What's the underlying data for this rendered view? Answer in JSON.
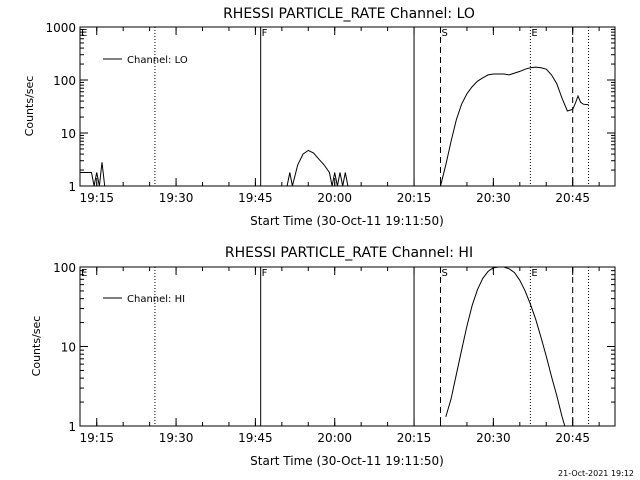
{
  "footer_date": "21-Oct-2021 19:12",
  "chart_data": [
    {
      "type": "line",
      "title": "RHESSI PARTICLE_RATE Channel: LO",
      "xlabel": "Start Time (30-Oct-11 19:11:50)",
      "ylabel": "Counts/sec",
      "x_start": "19:11:50",
      "x_ticks": [
        "19:15",
        "19:30",
        "19:45",
        "20:00",
        "20:15",
        "20:30",
        "20:45"
      ],
      "y_scale": "log",
      "ylim": [
        1,
        1000
      ],
      "y_ticks": [
        "1",
        "10",
        "100",
        "1000"
      ],
      "legend": {
        "label": "Channel: LO",
        "position": "top-left"
      },
      "markers": [
        {
          "label": "E",
          "time": "19:11:50",
          "style": "solid"
        },
        {
          "label": "",
          "time": "19:26",
          "style": "dotted"
        },
        {
          "label": "F",
          "time": "19:46",
          "style": "solid"
        },
        {
          "label": "",
          "time": "20:15",
          "style": "solid"
        },
        {
          "label": "S",
          "time": "20:20",
          "style": "dashed"
        },
        {
          "label": "E",
          "time": "20:37",
          "style": "dotted"
        },
        {
          "label": "",
          "time": "20:45",
          "style": "dashed"
        },
        {
          "label": "",
          "time": "20:48",
          "style": "dotted"
        }
      ],
      "series": [
        {
          "segments": [
            [
              [
                "19:11:50",
                1.8
              ],
              [
                "19:14",
                1.8
              ],
              [
                "19:14.5",
                1.0
              ],
              [
                "19:15",
                1.8
              ],
              [
                "19:15.5",
                1.0
              ],
              [
                "19:16",
                2.8
              ],
              [
                "19:16.5",
                1.0
              ]
            ],
            [
              [
                "19:51",
                1.0
              ],
              [
                "19:51.5",
                1.8
              ],
              [
                "19:52",
                1.0
              ],
              [
                "19:53",
                2.5
              ],
              [
                "19:54",
                4.0
              ],
              [
                "19:55",
                4.7
              ],
              [
                "19:56",
                4.2
              ],
              [
                "19:57",
                3.2
              ],
              [
                "19:58",
                2.5
              ],
              [
                "19:59",
                1.8
              ],
              [
                "19:59.5",
                1.0
              ],
              [
                "20:00",
                1.8
              ],
              [
                "20:00.5",
                1.0
              ],
              [
                "20:01",
                1.8
              ],
              [
                "20:01.5",
                1.0
              ],
              [
                "20:02",
                1.8
              ],
              [
                "20:02.5",
                1.0
              ]
            ],
            [
              [
                "20:20",
                1.0
              ],
              [
                "20:21",
                2.5
              ],
              [
                "20:22",
                7
              ],
              [
                "20:23",
                18
              ],
              [
                "20:24",
                35
              ],
              [
                "20:25",
                55
              ],
              [
                "20:26",
                75
              ],
              [
                "20:27",
                95
              ],
              [
                "20:28",
                110
              ],
              [
                "20:29",
                125
              ],
              [
                "20:30",
                130
              ],
              [
                "20:32",
                130
              ],
              [
                "20:33",
                125
              ],
              [
                "20:34",
                135
              ],
              [
                "20:35",
                145
              ],
              [
                "20:36",
                160
              ],
              [
                "20:37",
                170
              ],
              [
                "20:38",
                175
              ],
              [
                "20:39",
                170
              ],
              [
                "20:40",
                160
              ],
              [
                "20:41",
                125
              ],
              [
                "20:42",
                85
              ],
              [
                "20:43",
                45
              ],
              [
                "20:44",
                26
              ],
              [
                "20:45",
                28
              ],
              [
                "20:45.5",
                36
              ],
              [
                "20:46",
                50
              ],
              [
                "20:46.5",
                38
              ],
              [
                "20:47",
                35
              ],
              [
                "20:48",
                34
              ]
            ]
          ]
        }
      ]
    },
    {
      "type": "line",
      "title": "RHESSI PARTICLE_RATE Channel: HI",
      "xlabel": "Start Time (30-Oct-11 19:11:50)",
      "ylabel": "Counts/sec",
      "x_start": "19:11:50",
      "x_ticks": [
        "19:15",
        "19:30",
        "19:45",
        "20:00",
        "20:15",
        "20:30",
        "20:45"
      ],
      "y_scale": "log",
      "ylim": [
        1,
        100
      ],
      "y_ticks": [
        "1",
        "10",
        "100"
      ],
      "legend": {
        "label": "Channel: HI",
        "position": "top-left"
      },
      "markers": [
        {
          "label": "E",
          "time": "19:11:50",
          "style": "solid"
        },
        {
          "label": "",
          "time": "19:26",
          "style": "dotted"
        },
        {
          "label": "F",
          "time": "19:46",
          "style": "solid"
        },
        {
          "label": "",
          "time": "20:15",
          "style": "solid"
        },
        {
          "label": "S",
          "time": "20:20",
          "style": "dashed"
        },
        {
          "label": "E",
          "time": "20:37",
          "style": "dotted"
        },
        {
          "label": "",
          "time": "20:45",
          "style": "dashed"
        },
        {
          "label": "",
          "time": "20:48",
          "style": "dotted"
        }
      ],
      "series": [
        {
          "segments": [
            [
              [
                "20:21",
                1.3
              ],
              [
                "20:22",
                2.2
              ],
              [
                "20:23",
                4.5
              ],
              [
                "20:24",
                9
              ],
              [
                "20:25",
                18
              ],
              [
                "20:26",
                33
              ],
              [
                "20:27",
                52
              ],
              [
                "20:28",
                72
              ],
              [
                "20:29",
                88
              ],
              [
                "20:30",
                98
              ],
              [
                "20:31",
                100
              ],
              [
                "20:32",
                100
              ],
              [
                "20:33",
                95
              ],
              [
                "20:34",
                85
              ],
              [
                "20:35",
                68
              ],
              [
                "20:36",
                50
              ],
              [
                "20:37",
                34
              ],
              [
                "20:38",
                22
              ],
              [
                "20:39",
                13
              ],
              [
                "20:40",
                7.5
              ],
              [
                "20:41",
                4.2
              ],
              [
                "20:42",
                2.4
              ],
              [
                "20:43",
                1.3
              ],
              [
                "20:43.5",
                1.0
              ]
            ]
          ]
        }
      ]
    }
  ]
}
